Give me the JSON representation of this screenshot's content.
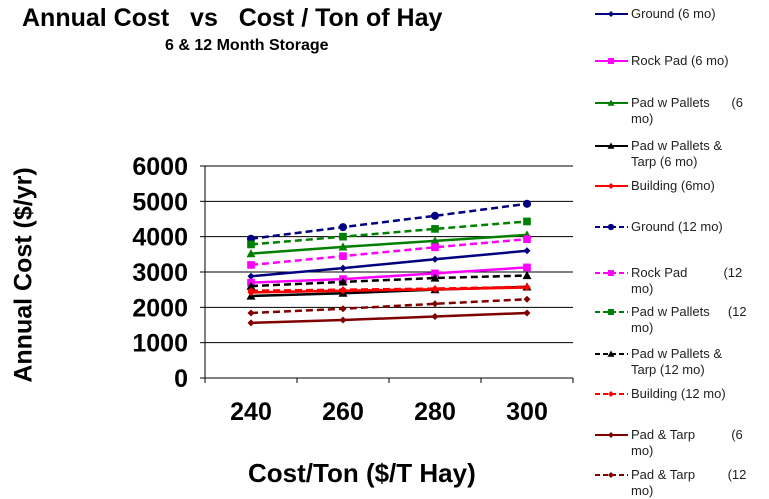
{
  "chart_data": {
    "type": "line",
    "title": "Annual Cost   vs   Cost / Ton of Hay",
    "subtitle": "6 & 12 Month Storage",
    "xlabel": "Cost/Ton ($/T Hay)",
    "ylabel": "Annual Cost ($/yr)",
    "x": [
      240,
      260,
      280,
      300
    ],
    "x_ticks": [
      "240",
      "260",
      "280",
      "300"
    ],
    "y_ticks": [
      "0",
      "1000",
      "2000",
      "3000",
      "4000",
      "5000",
      "6000"
    ],
    "ylim": [
      0,
      6000
    ],
    "grid": "horizontal",
    "legend_position": "right",
    "series": [
      {
        "name": "Ground (6 mo)",
        "label": "Ground (6 mo)",
        "color": "#000080",
        "dash": false,
        "marker": "diamond",
        "values": [
          2880,
          3110,
          3360,
          3600
        ]
      },
      {
        "name": "Rock Pad (6 mo)",
        "label": "Rock Pad (6 mo)",
        "color": "#ff00ff",
        "dash": false,
        "marker": "square",
        "values": [
          2700,
          2800,
          2960,
          3130
        ]
      },
      {
        "name": "Pad w Pallets (6 mo)",
        "label": "Pad w Pallets      (6\nmo)",
        "color": "#008000",
        "dash": false,
        "marker": "triangle",
        "values": [
          3520,
          3710,
          3880,
          4050
        ]
      },
      {
        "name": "Pad w Pallets & Tarp (6 mo)",
        "label": "Pad w Pallets &\nTarp (6 mo)",
        "color": "#000000",
        "dash": false,
        "marker": "triangle",
        "values": [
          2320,
          2400,
          2500,
          2580
        ]
      },
      {
        "name": "Building (6mo)",
        "label": "Building (6mo)",
        "color": "#ff0000",
        "dash": false,
        "marker": "diamond",
        "values": [
          2420,
          2470,
          2510,
          2560
        ]
      },
      {
        "name": "Ground (12 mo)",
        "label": "Ground (12 mo)",
        "color": "#000080",
        "dash": true,
        "marker": "circle",
        "values": [
          3940,
          4270,
          4590,
          4930
        ]
      },
      {
        "name": "Rock Pad (12 mo)",
        "label": "Rock Pad          (12\nmo)",
        "color": "#ff00ff",
        "dash": true,
        "marker": "square",
        "values": [
          3200,
          3450,
          3700,
          3930
        ]
      },
      {
        "name": "Pad w Pallets (12 mo)",
        "label": "Pad w Pallets     (12\nmo)",
        "color": "#008000",
        "dash": true,
        "marker": "square",
        "values": [
          3780,
          4000,
          4220,
          4430
        ]
      },
      {
        "name": "Pad w Pallets & Tarp (12 mo)",
        "label": "Pad w Pallets &\nTarp (12 mo)",
        "color": "#000000",
        "dash": true,
        "marker": "triangle",
        "values": [
          2600,
          2720,
          2830,
          2900
        ]
      },
      {
        "name": "Building (12 mo)",
        "label": "Building (12 mo)",
        "color": "#ff0000",
        "dash": true,
        "marker": "diamond",
        "values": [
          2470,
          2500,
          2530,
          2580
        ]
      },
      {
        "name": "Pad & Tarp (6 mo)",
        "label": "Pad & Tarp          (6\nmo)",
        "color": "#800000",
        "dash": false,
        "marker": "diamond",
        "values": [
          1560,
          1640,
          1740,
          1840
        ]
      },
      {
        "name": "Pad & Tarp (12 mo)",
        "label": "Pad & Tarp         (12\nmo)",
        "color": "#800000",
        "dash": true,
        "marker": "diamond",
        "values": [
          1840,
          1960,
          2100,
          2230
        ]
      }
    ]
  }
}
